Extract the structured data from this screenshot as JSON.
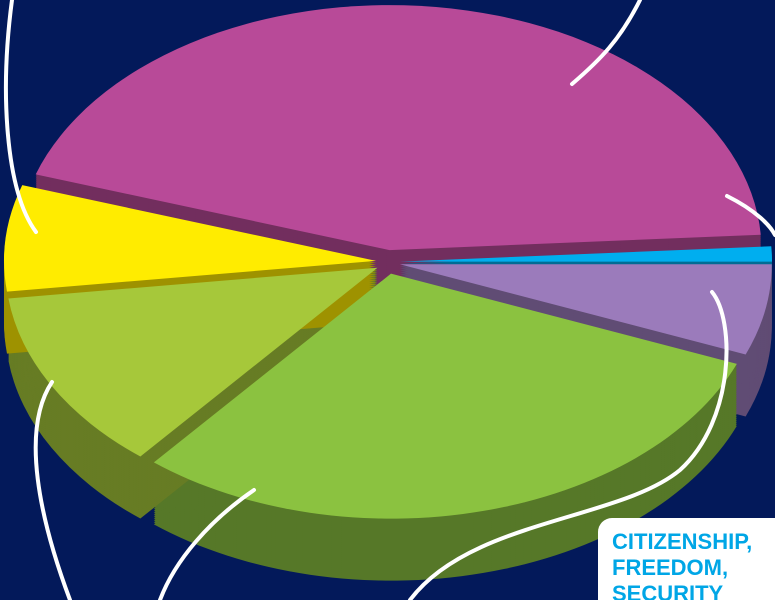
{
  "chart_data": {
    "type": "pie",
    "categories": [
      null,
      null,
      null,
      null,
      null,
      null
    ],
    "values": [
      44,
      1,
      6,
      30,
      12,
      7
    ],
    "colors": [
      "#b84a98",
      "#00aeef",
      "#9b7bbb",
      "#8bc240",
      "#a6c83a",
      "#ffec00"
    ],
    "annotation": [
      "CITIZENSHIP,",
      "FREEDOM,",
      "SECURITY"
    ]
  }
}
